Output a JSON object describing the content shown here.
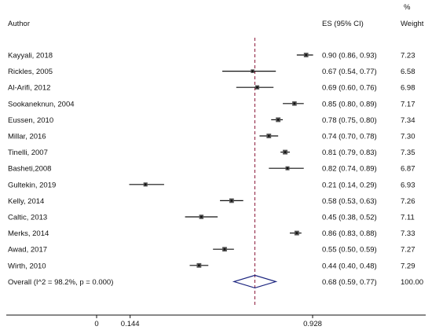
{
  "chart_data": {
    "type": "forest",
    "headers": {
      "author": "Author",
      "es": "ES (95% CI)",
      "weight_top": "%",
      "weight": "Weight"
    },
    "studies": [
      {
        "author": "Kayyali, 2018",
        "es": 0.9,
        "lo": 0.86,
        "hi": 0.93,
        "es_text": "0.90 (0.86, 0.93)",
        "weight": "7.23"
      },
      {
        "author": "Rickles, 2005",
        "es": 0.67,
        "lo": 0.54,
        "hi": 0.77,
        "es_text": "0.67 (0.54, 0.77)",
        "weight": "6.58"
      },
      {
        "author": "Al-Arifi, 2012",
        "es": 0.69,
        "lo": 0.6,
        "hi": 0.76,
        "es_text": "0.69 (0.60, 0.76)",
        "weight": "6.98"
      },
      {
        "author": "Sookaneknun, 2004",
        "es": 0.85,
        "lo": 0.8,
        "hi": 0.89,
        "es_text": "0.85 (0.80, 0.89)",
        "weight": "7.17"
      },
      {
        "author": "Eussen, 2010",
        "es": 0.78,
        "lo": 0.75,
        "hi": 0.8,
        "es_text": "0.78 (0.75, 0.80)",
        "weight": "7.34"
      },
      {
        "author": "Millar, 2016",
        "es": 0.74,
        "lo": 0.7,
        "hi": 0.78,
        "es_text": "0.74 (0.70, 0.78)",
        "weight": "7.30"
      },
      {
        "author": "Tinelli, 2007",
        "es": 0.81,
        "lo": 0.79,
        "hi": 0.83,
        "es_text": "0.81 (0.79, 0.83)",
        "weight": "7.35"
      },
      {
        "author": "Basheti,2008",
        "es": 0.82,
        "lo": 0.74,
        "hi": 0.89,
        "es_text": "0.82 (0.74, 0.89)",
        "weight": "6.87"
      },
      {
        "author": "Gultekin, 2019",
        "es": 0.21,
        "lo": 0.14,
        "hi": 0.29,
        "es_text": "0.21 (0.14, 0.29)",
        "weight": "6.93"
      },
      {
        "author": "Kelly, 2014",
        "es": 0.58,
        "lo": 0.53,
        "hi": 0.63,
        "es_text": "0.58 (0.53, 0.63)",
        "weight": "7.26"
      },
      {
        "author": "Caltic, 2013",
        "es": 0.45,
        "lo": 0.38,
        "hi": 0.52,
        "es_text": "0.45 (0.38, 0.52)",
        "weight": "7.11"
      },
      {
        "author": "Merks, 2014",
        "es": 0.86,
        "lo": 0.83,
        "hi": 0.88,
        "es_text": "0.86 (0.83, 0.88)",
        "weight": "7.33"
      },
      {
        "author": "Awad, 2017",
        "es": 0.55,
        "lo": 0.5,
        "hi": 0.59,
        "es_text": "0.55 (0.50, 0.59)",
        "weight": "7.27"
      },
      {
        "author": "Wirth, 2010",
        "es": 0.44,
        "lo": 0.4,
        "hi": 0.48,
        "es_text": "0.44 (0.40, 0.48)",
        "weight": "7.29"
      }
    ],
    "overall": {
      "author": "Overall  (I^2 = 98.2%, p = 0.000)",
      "es": 0.68,
      "lo": 0.59,
      "hi": 0.77,
      "es_text": "0.68 (0.59, 0.77)",
      "weight": "100.00"
    },
    "x_ticks": [
      {
        "value": 0,
        "label": "0"
      },
      {
        "value": 0.144,
        "label": "0.144"
      },
      {
        "value": 0.928,
        "label": "0.928"
      }
    ],
    "null_line": 0,
    "xlim": [
      0,
      0.928
    ],
    "colors": {
      "marker": "#111111",
      "overall_line": "#8b1a3a",
      "diamond": "#1a237e",
      "axis": "#111111"
    }
  }
}
